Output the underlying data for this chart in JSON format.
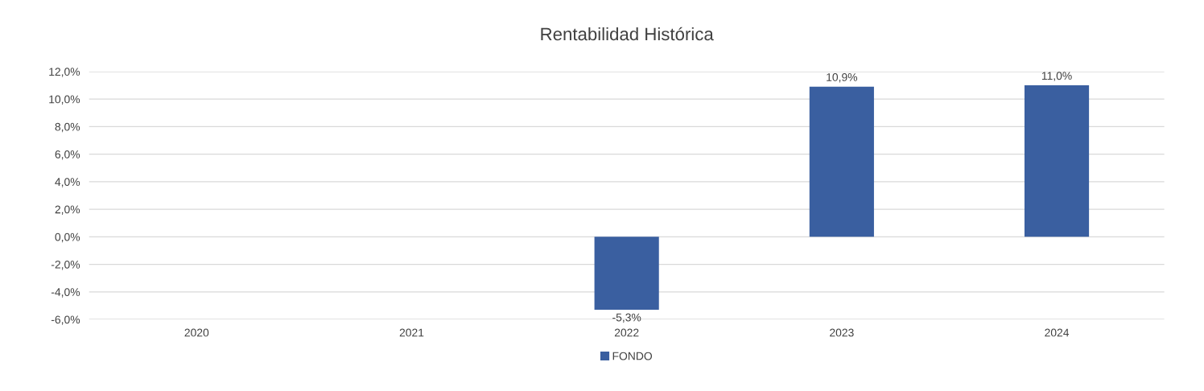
{
  "chart_data": {
    "type": "bar",
    "title": "Rentabilidad Histórica",
    "categories": [
      "2020",
      "2021",
      "2022",
      "2023",
      "2024"
    ],
    "series": [
      {
        "name": "FONDO",
        "color": "#3a5fa0",
        "values": [
          null,
          null,
          -5.3,
          10.9,
          11.0
        ],
        "value_labels": [
          null,
          null,
          "-5,3%",
          "10,9%",
          "11,0%"
        ]
      }
    ],
    "ylim": [
      -6,
      12
    ],
    "yticks": [
      {
        "value": -6,
        "label": "-6,0%"
      },
      {
        "value": -4,
        "label": "-4,0%"
      },
      {
        "value": -2,
        "label": "-2,0%"
      },
      {
        "value": 0,
        "label": "0,0%"
      },
      {
        "value": 2,
        "label": "2,0%"
      },
      {
        "value": 4,
        "label": "4,0%"
      },
      {
        "value": 6,
        "label": "6,0%"
      },
      {
        "value": 8,
        "label": "8,0%"
      },
      {
        "value": 10,
        "label": "10,0%"
      },
      {
        "value": 12,
        "label": "12,0%"
      }
    ],
    "grid": "y",
    "legend": "bottom"
  }
}
